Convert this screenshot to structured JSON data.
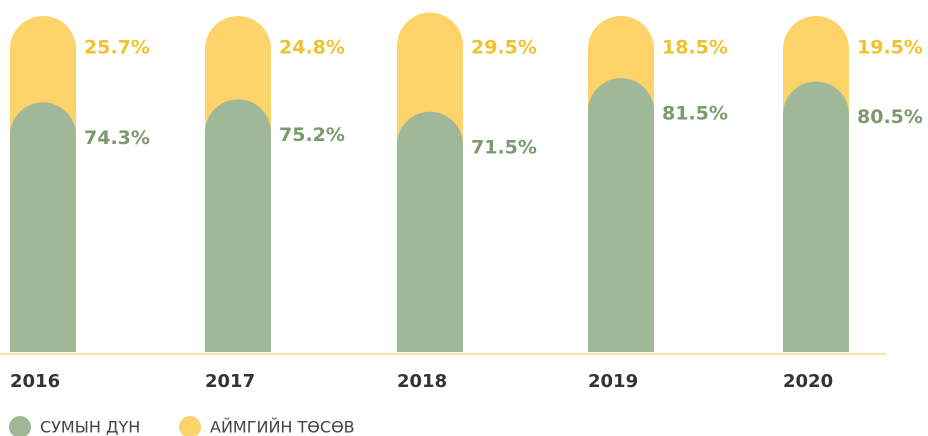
{
  "chart_data": {
    "type": "stacked_bar",
    "categories": [
      "2016",
      "2017",
      "2018",
      "2019",
      "2020"
    ],
    "ylim": [
      0,
      100
    ],
    "series": [
      {
        "name": "СУМЫН ДҮН",
        "color": "#a0b898",
        "label_color": "#7d9a6e",
        "values": [
          74.3,
          75.2,
          71.5,
          81.5,
          80.5
        ],
        "value_labels": [
          "74.3%",
          "75.2%",
          "71.5%",
          "81.5%",
          "80.5%"
        ]
      },
      {
        "name": "АЙМГИЙН ТӨСӨВ",
        "color": "#fdd36a",
        "label_color": "#f2c12e",
        "values": [
          25.7,
          24.8,
          29.5,
          18.5,
          19.5
        ],
        "value_labels": [
          "25.7%",
          "24.8%",
          "29.5%",
          "18.5%",
          "19.5%"
        ]
      }
    ]
  }
}
